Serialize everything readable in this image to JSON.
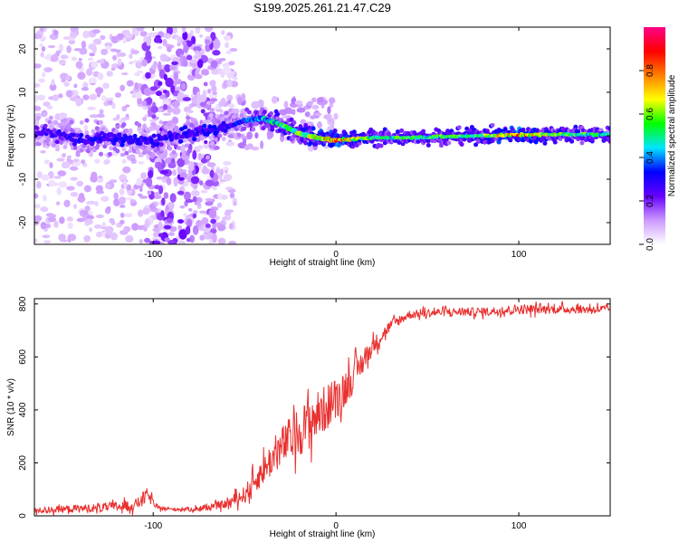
{
  "title": "S199.2025.261.21.47.C29",
  "colors": {
    "snr_line": "#e8302f",
    "axis": "#000000",
    "background": "#ffffff"
  },
  "chart_data": [
    {
      "type": "heatmap",
      "xlabel": "Height of straight line (km)",
      "ylabel": "Frequency (Hz)",
      "xlim": [
        -165,
        150
      ],
      "ylim": [
        -25,
        25
      ],
      "xticks": [
        -100,
        0,
        100
      ],
      "yticks": [
        -20,
        -10,
        0,
        10,
        20
      ],
      "colorbar": {
        "label": "Normalized spectral amplitude",
        "range": [
          0,
          1
        ],
        "ticks": [
          0.0,
          0.2,
          0.4,
          0.6,
          0.8
        ],
        "tick_labels": [
          "0.0",
          "0.2",
          "0.4",
          "0.6",
          "0.8"
        ],
        "colormap": [
          "#ffffff",
          "#cc99ff",
          "#6600ff",
          "#0000ff",
          "#00e5ff",
          "#00ff00",
          "#ffff00",
          "#ff7f00",
          "#ff0000",
          "#ff0088"
        ]
      },
      "signal_track": [
        {
          "x": -160,
          "freq": 1.0,
          "amp": 0.25
        },
        {
          "x": -140,
          "freq": -1.0,
          "amp": 0.3
        },
        {
          "x": -120,
          "freq": -0.5,
          "amp": 0.3
        },
        {
          "x": -105,
          "freq": -1.5,
          "amp": 0.3
        },
        {
          "x": -60,
          "freq": 2.0,
          "amp": 0.3
        },
        {
          "x": -50,
          "freq": 3.5,
          "amp": 0.35
        },
        {
          "x": -40,
          "freq": 4.0,
          "amp": 0.45
        },
        {
          "x": -30,
          "freq": 2.5,
          "amp": 0.55
        },
        {
          "x": -20,
          "freq": 0.5,
          "amp": 0.6
        },
        {
          "x": -10,
          "freq": -0.5,
          "amp": 0.7
        },
        {
          "x": 0,
          "freq": -1.0,
          "amp": 0.8
        },
        {
          "x": 20,
          "freq": -0.5,
          "amp": 0.55
        },
        {
          "x": 50,
          "freq": -0.3,
          "amp": 0.55
        },
        {
          "x": 80,
          "freq": 0.0,
          "amp": 0.6
        },
        {
          "x": 100,
          "freq": 0.2,
          "amp": 0.8
        },
        {
          "x": 120,
          "freq": 0.3,
          "amp": 0.6
        },
        {
          "x": 150,
          "freq": 0.3,
          "amp": 0.5
        }
      ]
    },
    {
      "type": "line",
      "xlabel": "Height of straight line (km)",
      "ylabel": "SNR (10 * v/v)",
      "xlim": [
        -165,
        150
      ],
      "ylim": [
        0,
        820
      ],
      "xticks": [
        -100,
        0,
        100
      ],
      "yticks": [
        0,
        200,
        400,
        600,
        800
      ],
      "series": [
        {
          "name": "SNR",
          "x": [
            -165,
            -150,
            -130,
            -110,
            -103,
            -98,
            -90,
            -80,
            -70,
            -60,
            -50,
            -40,
            -30,
            -20,
            -10,
            0,
            10,
            20,
            30,
            40,
            60,
            80,
            100,
            120,
            150
          ],
          "values": [
            20,
            25,
            30,
            40,
            80,
            30,
            25,
            25,
            30,
            45,
            80,
            170,
            260,
            320,
            380,
            440,
            530,
            640,
            720,
            760,
            770,
            770,
            780,
            780,
            780
          ],
          "noise": [
            20,
            25,
            30,
            40,
            50,
            15,
            10,
            15,
            20,
            30,
            60,
            100,
            140,
            170,
            170,
            150,
            110,
            60,
            40,
            30,
            30,
            30,
            35,
            30,
            30
          ]
        }
      ]
    }
  ]
}
